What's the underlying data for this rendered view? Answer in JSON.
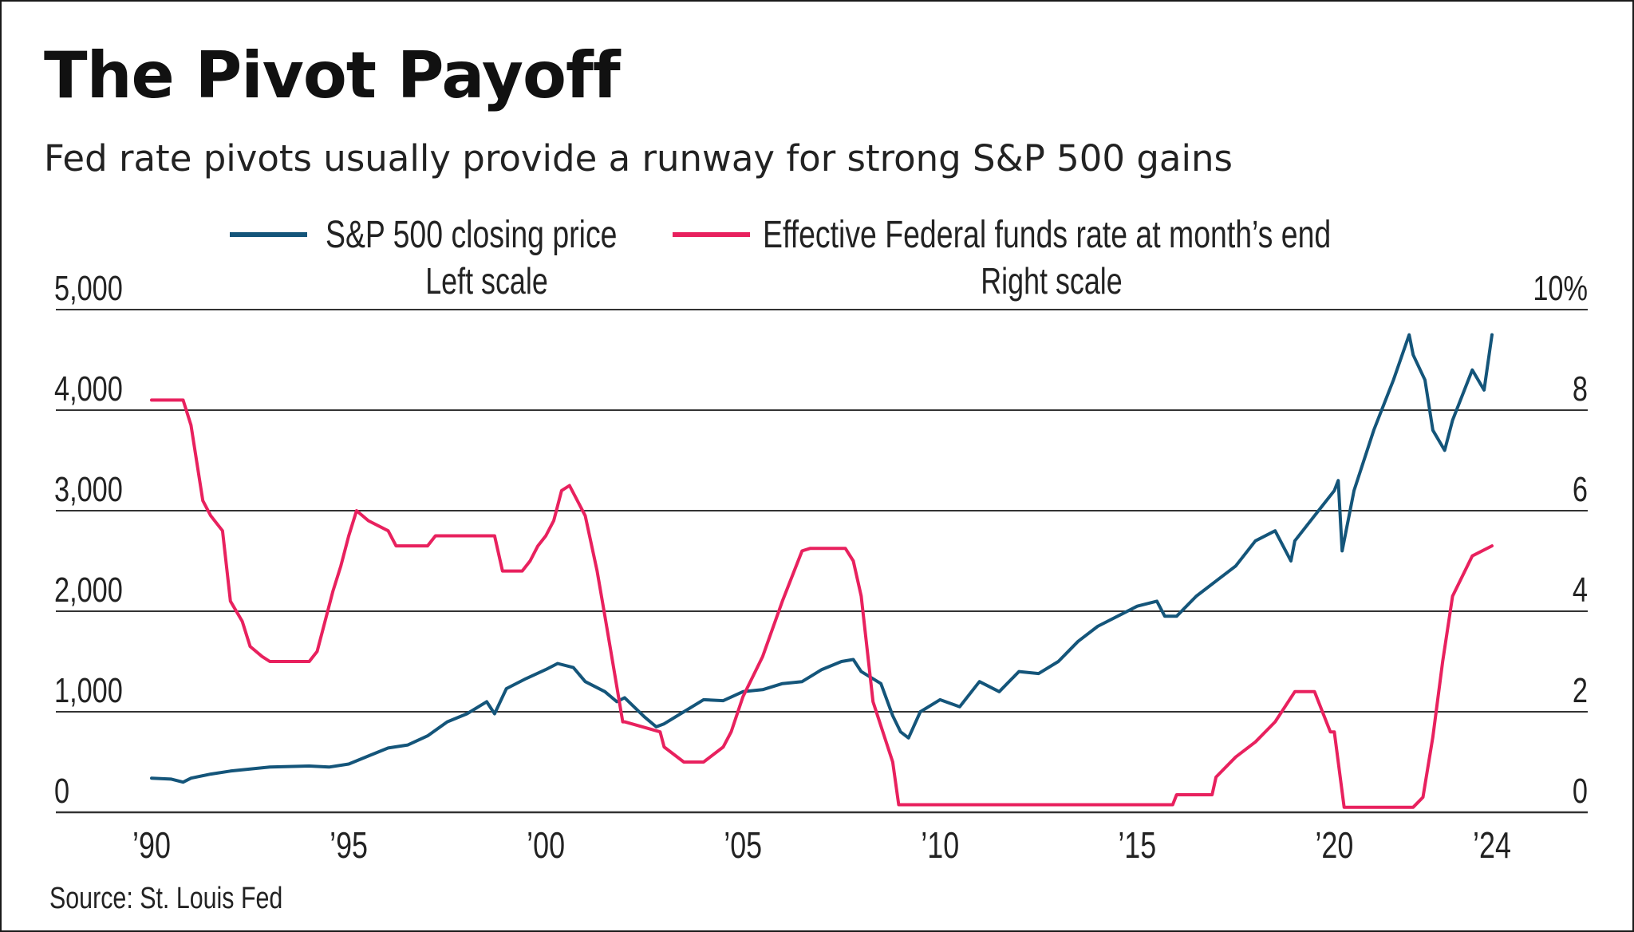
{
  "title": "The Pivot Payoff",
  "subtitle": "Fed rate pivots usually provide a runway for strong S&P 500 gains",
  "source": "Source: St. Louis Fed",
  "chart_data": {
    "type": "line",
    "colors": {
      "sp500": "#14557a",
      "fedfunds": "#e8215e",
      "grid": "#333333"
    },
    "legend_position": "top",
    "grid": true,
    "x_range": [
      1990,
      2024
    ],
    "x_ticks": [
      1990,
      1995,
      2000,
      2005,
      2010,
      2015,
      2020,
      2024
    ],
    "x_tick_labels": [
      "’90",
      "’95",
      "’00",
      "’05",
      "’10",
      "’15",
      "’20",
      "’24"
    ],
    "left_axis": {
      "range": [
        0,
        5000
      ],
      "ticks": [
        0,
        1000,
        2000,
        3000,
        4000,
        5000
      ],
      "tick_labels": [
        "0",
        "1,000",
        "2,000",
        "3,000",
        "4,000",
        "5,000"
      ],
      "caption": "Left scale"
    },
    "right_axis": {
      "range": [
        0,
        10
      ],
      "ticks": [
        0,
        2,
        4,
        6,
        8,
        10
      ],
      "tick_labels": [
        "0",
        "2",
        "4",
        "6",
        "8",
        "10%"
      ],
      "caption": "Right scale"
    },
    "series": [
      {
        "name": "S&P 500 closing price",
        "axis": "left",
        "x": [
          1990,
          1990.5,
          1990.8,
          1991,
          1991.5,
          1992,
          1993,
          1994,
          1994.5,
          1995,
          1995.5,
          1996,
          1996.5,
          1997,
          1997.5,
          1998,
          1998.5,
          1998.7,
          1999,
          1999.5,
          2000,
          2000.3,
          2000.7,
          2001,
          2001.5,
          2001.8,
          2002,
          2002.5,
          2002.8,
          2003,
          2003.5,
          2004,
          2004.5,
          2005,
          2005.5,
          2006,
          2006.5,
          2007,
          2007.5,
          2007.8,
          2008,
          2008.5,
          2008.8,
          2009,
          2009.2,
          2009.5,
          2010,
          2010.5,
          2011,
          2011.5,
          2012,
          2012.5,
          2013,
          2013.5,
          2014,
          2014.5,
          2015,
          2015.5,
          2015.7,
          2016,
          2016.5,
          2017,
          2017.5,
          2018,
          2018.5,
          2018.9,
          2019,
          2019.5,
          2020,
          2020.1,
          2020.2,
          2020.5,
          2021,
          2021.5,
          2021.9,
          2022,
          2022.3,
          2022.5,
          2022.8,
          2023,
          2023.5,
          2023.8,
          2024
        ],
        "values": [
          340,
          330,
          300,
          340,
          380,
          410,
          450,
          460,
          450,
          480,
          560,
          640,
          670,
          760,
          900,
          980,
          1100,
          980,
          1230,
          1330,
          1420,
          1480,
          1440,
          1300,
          1200,
          1100,
          1140,
          950,
          850,
          880,
          1000,
          1120,
          1110,
          1200,
          1220,
          1280,
          1300,
          1420,
          1500,
          1520,
          1400,
          1280,
          960,
          800,
          740,
          1000,
          1120,
          1050,
          1300,
          1200,
          1400,
          1380,
          1500,
          1700,
          1850,
          1950,
          2050,
          2100,
          1950,
          1950,
          2150,
          2300,
          2450,
          2700,
          2800,
          2500,
          2700,
          2950,
          3200,
          3300,
          2600,
          3200,
          3800,
          4300,
          4750,
          4550,
          4300,
          3800,
          3600,
          3900,
          4400,
          4200,
          4750
        ]
      },
      {
        "name": "Effective Federal funds rate at month’s end",
        "axis": "right",
        "x": [
          1990,
          1990.8,
          1991,
          1991.3,
          1991.5,
          1991.8,
          1992,
          1992.3,
          1992.5,
          1992.8,
          1993,
          1994,
          1994.2,
          1994.4,
          1994.6,
          1994.8,
          1995,
          1995.2,
          1995.5,
          1996,
          1996.2,
          1997,
          1997.2,
          1998.7,
          1998.9,
          1999.4,
          1999.6,
          1999.8,
          2000,
          2000.2,
          2000.4,
          2000.6,
          2001,
          2001.3,
          2001.5,
          2001.8,
          2001.95,
          2002,
          2002.9,
          2003,
          2003.5,
          2004,
          2004.5,
          2004.7,
          2005,
          2005.5,
          2006,
          2006.5,
          2006.7,
          2007.6,
          2007.8,
          2008,
          2008.3,
          2008.8,
          2008.95,
          2009,
          2015.9,
          2016,
          2016.9,
          2017,
          2017.5,
          2018,
          2018.5,
          2019,
          2019.5,
          2019.7,
          2019.9,
          2020,
          2020.25,
          2022,
          2022.25,
          2022.5,
          2022.75,
          2023,
          2023.5,
          2024
        ],
        "values": [
          8.2,
          8.2,
          7.7,
          6.2,
          5.9,
          5.6,
          4.2,
          3.8,
          3.3,
          3.1,
          3.0,
          3.0,
          3.2,
          3.8,
          4.4,
          4.9,
          5.5,
          6.0,
          5.8,
          5.6,
          5.3,
          5.3,
          5.5,
          5.5,
          4.8,
          4.8,
          5.0,
          5.3,
          5.5,
          5.8,
          6.4,
          6.5,
          5.9,
          4.8,
          3.9,
          2.5,
          1.8,
          1.8,
          1.6,
          1.3,
          1.0,
          1.0,
          1.3,
          1.6,
          2.3,
          3.1,
          4.2,
          5.2,
          5.25,
          5.25,
          5.0,
          4.3,
          2.2,
          1.0,
          0.15,
          0.15,
          0.15,
          0.35,
          0.35,
          0.7,
          1.1,
          1.4,
          1.8,
          2.4,
          2.4,
          2.0,
          1.6,
          1.6,
          0.1,
          0.1,
          0.3,
          1.5,
          3.0,
          4.3,
          5.1,
          5.3
        ]
      }
    ]
  }
}
